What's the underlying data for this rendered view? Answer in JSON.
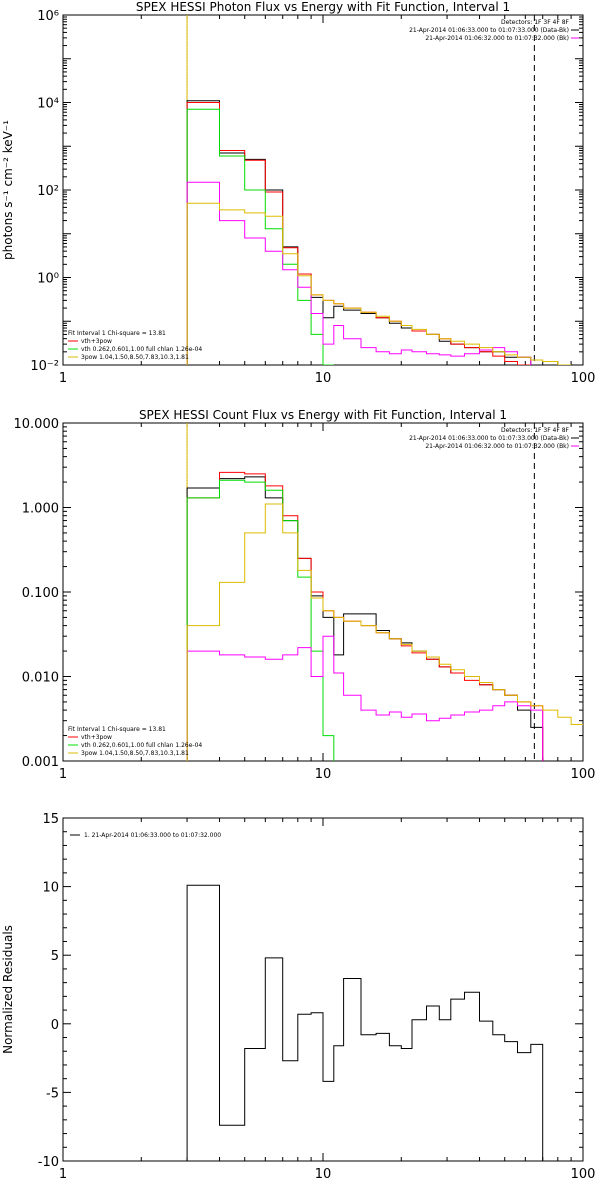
{
  "chart_data": [
    {
      "type": "line",
      "title": "SPEX HESSI Photon Flux vs Energy with Fit Function, Interval 1",
      "xlabel": "",
      "ylabel": "photons s⁻¹ cm⁻² keV⁻¹",
      "xscale": "log",
      "yscale": "log",
      "xlim": [
        1,
        100
      ],
      "ylim": [
        0.01,
        1000000
      ],
      "x_ticks": [
        {
          "v": 1,
          "label": "1"
        },
        {
          "v": 10,
          "label": "10"
        },
        {
          "v": 100,
          "label": "100"
        }
      ],
      "y_ticks": [
        {
          "v": 0.01,
          "label": "10⁻²"
        },
        {
          "v": 1,
          "label": "10⁰"
        },
        {
          "v": 100,
          "label": "10²"
        },
        {
          "v": 10000,
          "label": "10⁴"
        },
        {
          "v": 1000000,
          "label": "10⁶"
        }
      ],
      "legend_right": [
        "Detectors: 1F 3F 4F 8F",
        "21-Apr-2014 01:06:33.000 to 01:07:33.000 (Data-Bk)",
        "21-Apr-2014 01:06:32.000 to 01:07:32.000 (Bk)"
      ],
      "legend_right_colors": [
        "#000000",
        "#ff00ff"
      ],
      "legend_left": [
        "Fit Interval 1    Chi-square = 13.81",
        "vth+3pow",
        "vth 0.262,0.601,1.00  full chlan 1.26e-04",
        "3pow 1.04,1.50,8.50,7.83,10.3,1.81"
      ],
      "legend_left_colors": [
        "#ff0000",
        "#00dd00",
        "#ddbb00"
      ],
      "vlines": [
        {
          "x": 3,
          "style": "dotted",
          "color": "#000000"
        },
        {
          "x": 3,
          "style": "solid",
          "color": "#ddbb00"
        },
        {
          "x": 65,
          "style": "dashed",
          "color": "#000000"
        }
      ],
      "edges": [
        3,
        4,
        5,
        6,
        7,
        8,
        9,
        10,
        11,
        12,
        14,
        16,
        18,
        20,
        22,
        25,
        28,
        31,
        35,
        40,
        45,
        50,
        56,
        63,
        70,
        80,
        90,
        100
      ],
      "series": [
        {
          "color": "#000000",
          "values": [
            11000,
            700,
            500,
            100,
            5.0,
            1.2,
            0.35,
            0.12,
            0.22,
            0.18,
            0.15,
            0.12,
            0.09,
            0.07,
            0.06,
            0.05,
            0.035,
            0.03,
            0.025,
            0.02,
            0.02,
            0.015,
            0.015,
            null,
            null,
            null,
            null
          ]
        },
        {
          "color": "#ff0000",
          "values": [
            10000,
            800,
            480,
            90,
            4.8,
            1.2,
            0.4,
            0.3,
            0.25,
            0.2,
            0.16,
            0.12,
            0.1,
            0.08,
            0.06,
            0.05,
            0.04,
            0.03,
            0.025,
            0.02,
            0.016,
            0.012,
            0.01,
            null,
            null,
            null,
            null
          ]
        },
        {
          "color": "#00dd00",
          "values": [
            7000,
            600,
            100,
            13,
            2.0,
            0.3,
            0.05,
            0.01,
            null,
            null,
            null,
            null,
            null,
            null,
            null,
            null,
            null,
            null,
            null,
            null,
            null,
            null,
            null,
            null,
            null,
            null,
            null
          ]
        },
        {
          "color": "#ff00ff",
          "values": [
            150,
            20,
            8,
            4,
            1.5,
            0.6,
            0.15,
            0.03,
            0.08,
            0.04,
            0.025,
            0.02,
            0.018,
            0.022,
            0.02,
            0.018,
            0.017,
            0.016,
            0.018,
            0.022,
            0.025,
            0.02,
            0.015,
            null,
            null,
            null,
            null
          ]
        },
        {
          "color": "#ddbb00",
          "values": [
            50,
            35,
            30,
            25,
            3.5,
            1.1,
            0.4,
            0.3,
            0.25,
            0.2,
            0.16,
            0.13,
            0.1,
            0.08,
            0.065,
            0.05,
            0.04,
            0.035,
            0.03,
            0.025,
            0.02,
            0.017,
            0.015,
            0.013,
            0.012,
            0.01,
            null
          ]
        }
      ]
    },
    {
      "type": "line",
      "title": "SPEX HESSI Count Flux vs Energy with Fit Function, Interval 1",
      "xlabel": "",
      "ylabel": "",
      "xscale": "log",
      "yscale": "log",
      "xlim": [
        1,
        100
      ],
      "ylim": [
        0.001,
        10
      ],
      "x_ticks": [
        {
          "v": 1,
          "label": "1"
        },
        {
          "v": 10,
          "label": "10"
        },
        {
          "v": 100,
          "label": "100"
        }
      ],
      "y_ticks": [
        {
          "v": 0.001,
          "label": "0.001"
        },
        {
          "v": 0.01,
          "label": "0.010"
        },
        {
          "v": 0.1,
          "label": "0.100"
        },
        {
          "v": 1,
          "label": "1.000"
        },
        {
          "v": 10,
          "label": "10.000"
        }
      ],
      "legend_right": [
        "Detectors: 1F 3F 4F 8F",
        "21-Apr-2014 01:06:33.000 to 01:07:33.000 (Data-Bk)",
        "21-Apr-2014 01:06:32.000 to 01:07:32.000 (Bk)"
      ],
      "legend_right_colors": [
        "#000000",
        "#ff00ff"
      ],
      "legend_left": [
        "Fit Interval 1    Chi-square = 13.81",
        "vth+3pow",
        "vth 0.262,0.601,1.00  full chlan 1.26e-04",
        "3pow 1.04,1.50,8.50,7.83,10.3,1.81"
      ],
      "legend_left_colors": [
        "#ff0000",
        "#00dd00",
        "#ddbb00"
      ],
      "vlines": [
        {
          "x": 3,
          "style": "dotted",
          "color": "#000000"
        },
        {
          "x": 3,
          "style": "solid",
          "color": "#ddbb00"
        },
        {
          "x": 65,
          "style": "dashed",
          "color": "#000000"
        }
      ],
      "edges": [
        3,
        4,
        5,
        6,
        7,
        8,
        9,
        10,
        11,
        12,
        14,
        16,
        18,
        20,
        22,
        25,
        28,
        31,
        35,
        40,
        45,
        50,
        56,
        63,
        70,
        80,
        90,
        100
      ],
      "series": [
        {
          "color": "#000000",
          "values": [
            1.7,
            2.2,
            2.3,
            1.3,
            0.7,
            0.25,
            0.09,
            0.05,
            0.018,
            0.055,
            0.055,
            0.035,
            0.028,
            0.025,
            0.02,
            0.016,
            0.013,
            0.011,
            0.01,
            0.008,
            0.007,
            0.006,
            0.004,
            0.0025,
            null,
            null,
            null
          ]
        },
        {
          "color": "#ff0000",
          "values": [
            1.3,
            2.6,
            2.5,
            1.8,
            0.8,
            0.25,
            0.1,
            0.06,
            0.05,
            0.045,
            0.04,
            0.033,
            0.028,
            0.023,
            0.019,
            0.016,
            0.013,
            0.011,
            0.009,
            0.008,
            0.007,
            0.006,
            0.005,
            0.0045,
            null,
            null,
            null
          ]
        },
        {
          "color": "#00dd00",
          "values": [
            1.3,
            2.1,
            2.0,
            1.6,
            0.7,
            0.15,
            0.02,
            0.002,
            null,
            null,
            null,
            null,
            null,
            null,
            null,
            null,
            null,
            null,
            null,
            null,
            null,
            null,
            null,
            null,
            null,
            null,
            null
          ]
        },
        {
          "color": "#ff00ff",
          "values": [
            0.02,
            0.018,
            0.017,
            0.016,
            0.018,
            0.022,
            0.01,
            0.03,
            0.011,
            0.006,
            0.004,
            0.0035,
            0.0038,
            0.0033,
            0.0036,
            0.003,
            0.0032,
            0.0035,
            0.0038,
            0.004,
            0.0045,
            0.005,
            0.0045,
            0.004,
            null,
            null,
            null
          ]
        },
        {
          "color": "#ddbb00",
          "values": [
            0.04,
            0.13,
            0.5,
            1.1,
            0.5,
            0.18,
            0.085,
            0.06,
            0.05,
            0.045,
            0.04,
            0.033,
            0.028,
            0.024,
            0.02,
            0.017,
            0.014,
            0.012,
            0.01,
            0.0085,
            0.007,
            0.006,
            0.005,
            0.0045,
            0.004,
            0.0033,
            0.0027
          ]
        }
      ]
    },
    {
      "type": "line",
      "title": "",
      "xlabel": "",
      "ylabel": "Normalized Residuals",
      "xscale": "log",
      "yscale": "linear",
      "xlim": [
        1,
        100
      ],
      "ylim": [
        -10,
        15
      ],
      "x_ticks": [
        {
          "v": 1,
          "label": "1"
        },
        {
          "v": 10,
          "label": "10"
        },
        {
          "v": 100,
          "label": "100"
        }
      ],
      "y_ticks": [
        {
          "v": -10,
          "label": "-10"
        },
        {
          "v": -5,
          "label": "-5"
        },
        {
          "v": 0,
          "label": "0"
        },
        {
          "v": 5,
          "label": "5"
        },
        {
          "v": 10,
          "label": "10"
        },
        {
          "v": 15,
          "label": "15"
        }
      ],
      "legend_left_top": [
        "1. 21-Apr-2014 01:06:33.000 to 01:07:32.000"
      ],
      "edges": [
        3,
        4,
        5,
        6,
        7,
        8,
        9,
        10,
        11,
        12,
        14,
        16,
        18,
        20,
        22,
        25,
        28,
        31,
        35,
        40,
        45,
        50,
        56,
        63,
        70
      ],
      "series": [
        {
          "color": "#000000",
          "values": [
            10.1,
            -7.4,
            -1.8,
            4.8,
            -2.7,
            0.7,
            0.8,
            -4.2,
            -1.6,
            3.3,
            -0.8,
            -0.7,
            -1.6,
            -1.8,
            0.3,
            1.3,
            0.3,
            1.8,
            2.3,
            0.2,
            -0.8,
            -1.3,
            -2.1,
            -1.5
          ]
        }
      ]
    }
  ]
}
